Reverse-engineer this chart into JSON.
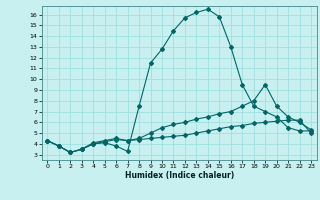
{
  "xlabel": "Humidex (Indice chaleur)",
  "bg_color": "#c8f0f0",
  "grid_color": "#99dddd",
  "line_color": "#006666",
  "xlim": [
    -0.5,
    23.5
  ],
  "ylim": [
    2.5,
    16.8
  ],
  "xticks": [
    0,
    1,
    2,
    3,
    4,
    5,
    6,
    7,
    8,
    9,
    10,
    11,
    12,
    13,
    14,
    15,
    16,
    17,
    18,
    19,
    20,
    21,
    22,
    23
  ],
  "yticks": [
    3,
    4,
    5,
    6,
    7,
    8,
    9,
    10,
    11,
    12,
    13,
    14,
    15,
    16
  ],
  "line1_x": [
    0,
    1,
    2,
    3,
    4,
    5,
    6,
    7,
    8,
    9,
    10,
    11,
    12,
    13,
    14,
    15,
    16,
    17,
    18,
    19,
    20,
    21,
    22,
    23
  ],
  "line1_y": [
    4.3,
    3.8,
    3.2,
    3.5,
    4.0,
    4.1,
    3.8,
    3.3,
    7.5,
    11.5,
    12.8,
    14.5,
    15.7,
    16.2,
    16.5,
    15.8,
    13.0,
    9.5,
    7.5,
    7.0,
    6.5,
    5.5,
    5.2,
    5.2
  ],
  "line2_x": [
    0,
    1,
    2,
    3,
    4,
    5,
    6,
    7,
    8,
    9,
    10,
    11,
    12,
    13,
    14,
    15,
    16,
    17,
    18,
    19,
    20,
    21,
    22,
    23
  ],
  "line2_y": [
    4.3,
    3.8,
    3.2,
    3.5,
    4.1,
    4.3,
    4.5,
    4.3,
    4.5,
    5.0,
    5.5,
    5.8,
    6.0,
    6.3,
    6.5,
    6.8,
    7.0,
    7.5,
    8.0,
    9.5,
    7.5,
    6.5,
    6.0,
    5.3
  ],
  "line3_x": [
    0,
    1,
    2,
    3,
    4,
    5,
    6,
    7,
    8,
    9,
    10,
    11,
    12,
    13,
    14,
    15,
    16,
    17,
    18,
    19,
    20,
    21,
    22,
    23
  ],
  "line3_y": [
    4.3,
    3.8,
    3.2,
    3.5,
    4.0,
    4.2,
    4.4,
    4.3,
    4.4,
    4.5,
    4.6,
    4.7,
    4.8,
    5.0,
    5.2,
    5.4,
    5.6,
    5.7,
    5.9,
    6.0,
    6.1,
    6.2,
    6.2,
    5.0
  ]
}
